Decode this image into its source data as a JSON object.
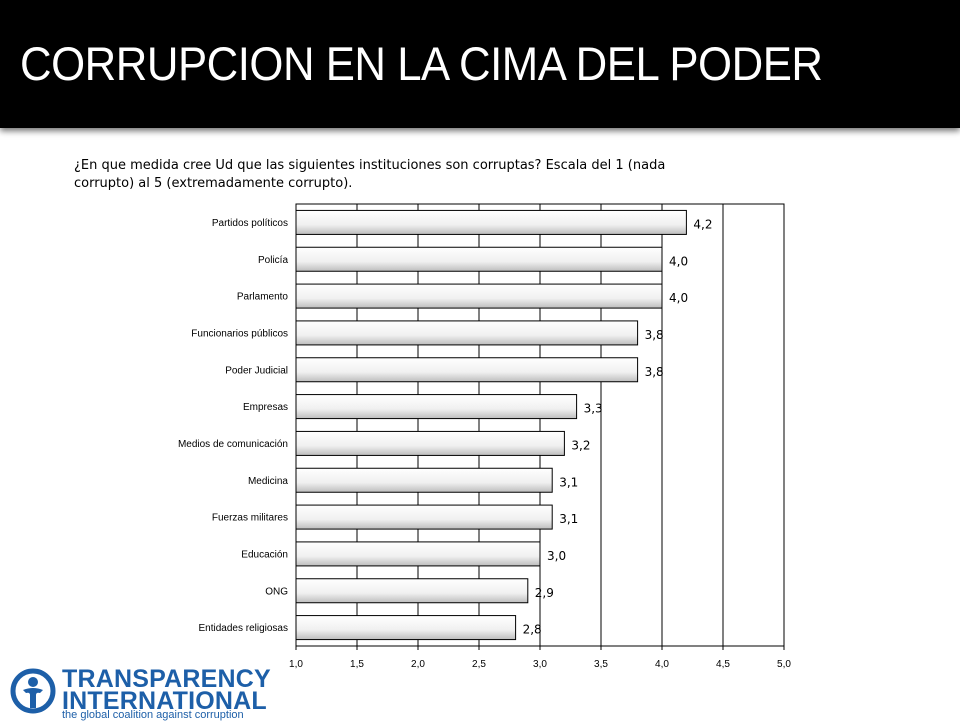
{
  "slide": {
    "title": "CORRUPCION EN LA CIMA DEL PODER",
    "question": "¿En que medida cree Ud que las siguientes instituciones son corruptas? Escala del 1 (nada corrupto) al 5 (extremadamente corrupto)."
  },
  "logo": {
    "line1": "TRANSPARENCY",
    "line2": "INTERNATIONAL",
    "tagline": "the global coalition against corruption",
    "icon": "globe-person-icon",
    "color": "#1d5fa8"
  },
  "chart_data": {
    "type": "bar",
    "orientation": "horizontal",
    "categories": [
      "Partidos políticos",
      "Policía",
      "Parlamento",
      "Funcionarios públicos",
      "Poder Judicial",
      "Empresas",
      "Medios de comunicación",
      "Medicina",
      "Fuerzas militares",
      "Educación",
      "ONG",
      "Entidades religiosas"
    ],
    "values": [
      4.2,
      4.0,
      4.0,
      3.8,
      3.8,
      3.3,
      3.2,
      3.1,
      3.1,
      3.0,
      2.9,
      2.8
    ],
    "value_labels": [
      "4,2",
      "4,0",
      "4,0",
      "3,8",
      "3,8",
      "3,3",
      "3,2",
      "3,1",
      "3,1",
      "3,0",
      "2,9",
      "2,8"
    ],
    "xlim": [
      1.0,
      5.0
    ],
    "x_ticks": [
      "1,0",
      "1,5",
      "2,0",
      "2,5",
      "3,0",
      "3,5",
      "4,0",
      "4,5",
      "5,0"
    ],
    "grid": true,
    "legend": "none",
    "title": "",
    "xlabel": "",
    "ylabel": ""
  }
}
